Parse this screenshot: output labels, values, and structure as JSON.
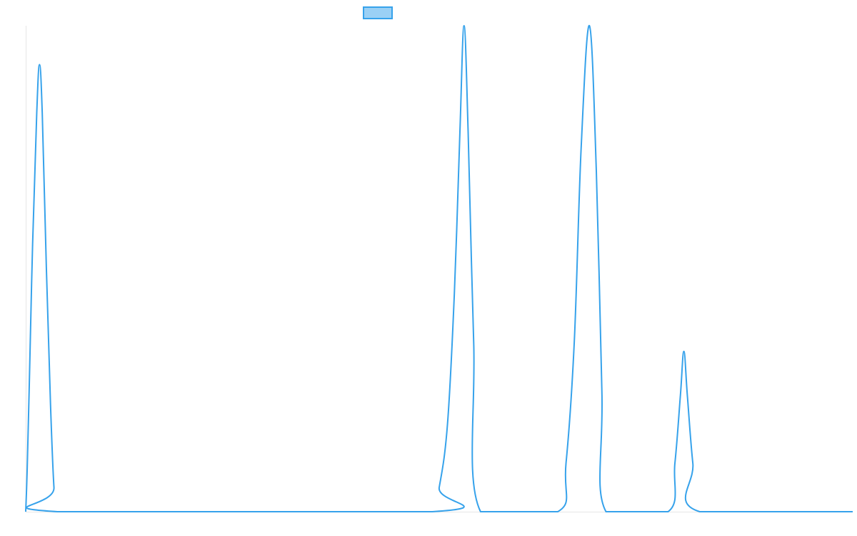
{
  "chart_data": {
    "type": "line",
    "title": "",
    "xlabel": "",
    "ylabel": "",
    "grid": false,
    "legend": {
      "placement": "top-center",
      "entries": [
        {
          "name": "",
          "color": "#36a2eb",
          "fill": "rgba(54,162,235,0.5)"
        }
      ]
    },
    "xlim": [
      0,
      1200
    ],
    "ylim": [
      0,
      1
    ],
    "series": [
      {
        "name": "",
        "color": "#36a2eb",
        "points": [
          [
            0,
            0
          ],
          [
            2,
            0.08
          ],
          [
            5,
            0.25
          ],
          [
            10,
            0.55
          ],
          [
            16,
            0.82
          ],
          [
            20,
            0.92
          ],
          [
            24,
            0.82
          ],
          [
            30,
            0.5
          ],
          [
            36,
            0.22
          ],
          [
            41,
            0.05
          ],
          [
            46,
            0
          ],
          [
            590,
            0
          ],
          [
            600,
            0.05
          ],
          [
            612,
            0.18
          ],
          [
            622,
            0.45
          ],
          [
            630,
            0.78
          ],
          [
            636,
            1.0
          ],
          [
            642,
            0.78
          ],
          [
            650,
            0.35
          ],
          [
            660,
            0
          ],
          [
            772,
            0
          ],
          [
            784,
            0.1
          ],
          [
            796,
            0.35
          ],
          [
            806,
            0.75
          ],
          [
            818,
            1.0
          ],
          [
            828,
            0.7
          ],
          [
            836,
            0.25
          ],
          [
            842,
            0
          ],
          [
            932,
            0
          ],
          [
            942,
            0.1
          ],
          [
            950,
            0.24
          ],
          [
            955,
            0.33
          ],
          [
            960,
            0.24
          ],
          [
            968,
            0.1
          ],
          [
            978,
            0
          ],
          [
            1200,
            0
          ]
        ]
      }
    ]
  }
}
